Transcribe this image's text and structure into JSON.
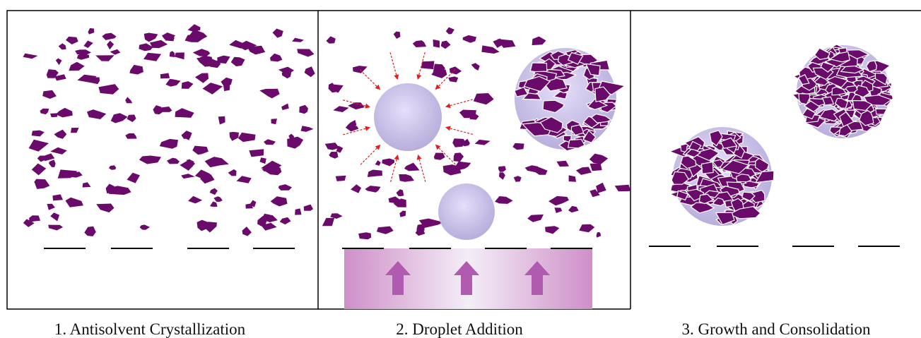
{
  "panels": [
    {
      "caption": "1. Antisolvent Crystallization"
    },
    {
      "caption": "2. Droplet Addition"
    },
    {
      "caption": "3. Growth and Consolidation"
    }
  ]
}
